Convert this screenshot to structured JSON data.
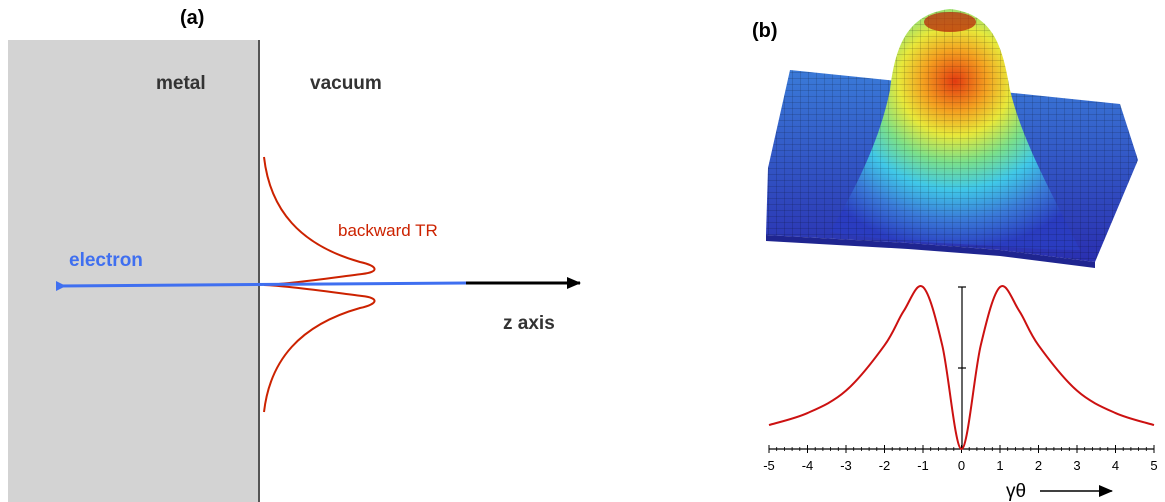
{
  "panel_a": {
    "label": "(a)",
    "metal_label": "metal",
    "vacuum_label": "vacuum",
    "tr_label": "backward TR",
    "electron_label": "electron",
    "zaxis_label": "z axis",
    "colors": {
      "metal_fill": "#d3d3d3",
      "interface": "#555555",
      "electron": "#3f6ff0",
      "tr_curve": "#cc2200",
      "axis": "#000000",
      "text_dark": "#333333"
    }
  },
  "panel_b": {
    "label": "(b)",
    "surface_colormap": "jet",
    "colors": {
      "curve": "#cc1111",
      "axis": "#000000"
    }
  },
  "chart_data": {
    "type": "line",
    "title": "",
    "xlabel": "γθ",
    "ylabel": "",
    "xlim": [
      -5,
      5
    ],
    "x_ticks": [
      "-5",
      "-4",
      "-3",
      "-2",
      "-1",
      "0",
      "1",
      "2",
      "3",
      "4",
      "5"
    ],
    "x_tick_values": [
      -5,
      -4,
      -3,
      -2,
      -1,
      0,
      1,
      2,
      3,
      4,
      5
    ],
    "grid": false,
    "series": [
      {
        "x": [
          -5,
          -4,
          -3,
          -2,
          -1.5,
          -1,
          -0.5,
          0,
          0.5,
          1,
          1.5,
          2,
          3,
          4,
          5
        ],
        "y": [
          0.148,
          0.222,
          0.36,
          0.64,
          0.852,
          1.0,
          0.64,
          0.0,
          0.64,
          1.0,
          0.852,
          0.64,
          0.36,
          0.222,
          0.148
        ]
      }
    ]
  }
}
